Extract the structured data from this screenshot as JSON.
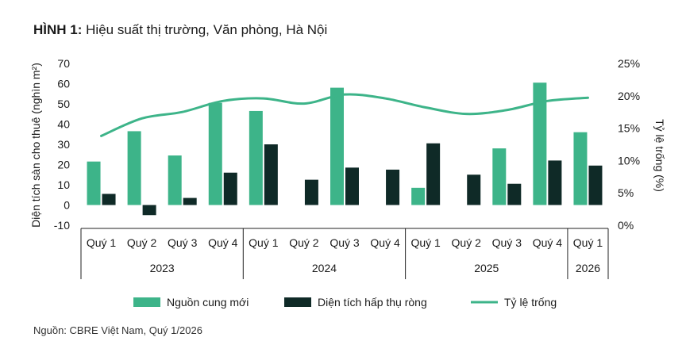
{
  "title_prefix": "HÌNH 1:",
  "title_text": "Hiệu suất thị trường, Văn phòng, Hà Nội",
  "source": "Nguồn: CBRE Việt Nam, Quý 1/2026",
  "chart_data": {
    "type": "bar",
    "categories": [
      {
        "quarter": "Quý 1",
        "year": "2023"
      },
      {
        "quarter": "Quý 2",
        "year": "2023"
      },
      {
        "quarter": "Quý 3",
        "year": "2023"
      },
      {
        "quarter": "Quý 4",
        "year": "2023"
      },
      {
        "quarter": "Quý 1",
        "year": "2024"
      },
      {
        "quarter": "Quý 2",
        "year": "2024"
      },
      {
        "quarter": "Quý 3",
        "year": "2024"
      },
      {
        "quarter": "Quý 4",
        "year": "2024"
      },
      {
        "quarter": "Quý 1",
        "year": "2025"
      },
      {
        "quarter": "Quý 2",
        "year": "2025"
      },
      {
        "quarter": "Quý 3",
        "year": "2025"
      },
      {
        "quarter": "Quý 4",
        "year": "2025"
      },
      {
        "quarter": "Quý 1",
        "year": "2026"
      }
    ],
    "years": [
      "2023",
      "2024",
      "2025",
      "2026"
    ],
    "series": [
      {
        "name": "Nguồn cung mới",
        "type": "bar",
        "axis": "left",
        "color": "#3db489",
        "values": [
          21.5,
          36.5,
          24.5,
          50.5,
          46.5,
          0,
          58,
          0,
          8.5,
          0,
          28,
          60.5,
          36
        ]
      },
      {
        "name": "Diện tích hấp thụ ròng",
        "type": "bar",
        "axis": "left",
        "color": "#0f2a27",
        "values": [
          5.5,
          -5,
          3.5,
          16,
          30,
          12.5,
          18.5,
          17.5,
          30.5,
          15,
          10.5,
          22,
          19.5
        ]
      },
      {
        "name": "Tỷ lệ trống",
        "type": "line",
        "axis": "right",
        "color": "#3db489",
        "values": [
          13.8,
          16.5,
          17.5,
          19.2,
          19.6,
          18.8,
          20.2,
          19.6,
          18.2,
          17.2,
          17.8,
          19.2,
          19.7
        ]
      }
    ],
    "ylabel": "Diện tích sàn cho thuê (nghìn m²)",
    "y2label": "Tỷ lệ trống (%)",
    "ylim": [
      -10,
      70
    ],
    "yticks": [
      "70",
      "60",
      "50",
      "40",
      "30",
      "20",
      "10",
      "0",
      "-10"
    ],
    "y2lim": [
      0,
      25
    ],
    "y2ticks": [
      "25%",
      "20%",
      "15%",
      "10%",
      "5%",
      "0%"
    ],
    "grid": false,
    "legend_position": "bottom"
  }
}
